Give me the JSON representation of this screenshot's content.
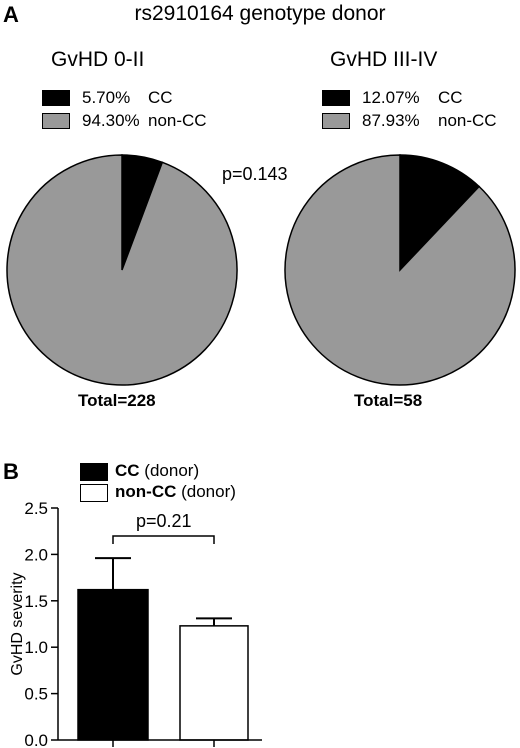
{
  "panel_a": {
    "label": "A",
    "title": "rs2910164 genotype donor",
    "p_value": "p=0.143",
    "groups": [
      {
        "title": "GvHD 0-II",
        "legend": [
          {
            "pct": "5.70%",
            "label": "CC"
          },
          {
            "pct": "94.30%",
            "label": "non-CC"
          }
        ],
        "total": "Total=228"
      },
      {
        "title": "GvHD III-IV",
        "legend": [
          {
            "pct": "12.07%",
            "label": "CC"
          },
          {
            "pct": "87.93%",
            "label": "non-CC"
          }
        ],
        "total": "Total=58"
      }
    ]
  },
  "panel_b": {
    "label": "B",
    "ylabel": "GvHD severity",
    "p_value": "p=0.21",
    "legend": [
      {
        "name": "CC",
        "suffix": "(donor)"
      },
      {
        "name": "non-CC",
        "suffix": "(donor)"
      }
    ]
  },
  "colors": {
    "cc": "#000000",
    "noncc": "#999999",
    "bar_cc": "#000000",
    "bar_noncc": "#ffffff"
  },
  "chart_data": [
    {
      "type": "pie",
      "title": "GvHD 0-II",
      "categories": [
        "CC",
        "non-CC"
      ],
      "values": [
        5.7,
        94.3
      ]
    },
    {
      "type": "pie",
      "title": "GvHD III-IV",
      "categories": [
        "CC",
        "non-CC"
      ],
      "values": [
        12.07,
        87.93
      ]
    },
    {
      "type": "bar",
      "categories": [
        "CC",
        "non-CC"
      ],
      "values": [
        1.62,
        1.23
      ],
      "errors": [
        0.34,
        0.08
      ],
      "ylabel": "GvHD severity",
      "ylim": [
        0,
        2.5
      ],
      "yticks": [
        "0.0",
        "0.5",
        "1.0",
        "1.5",
        "2.0",
        "2.5"
      ]
    }
  ]
}
